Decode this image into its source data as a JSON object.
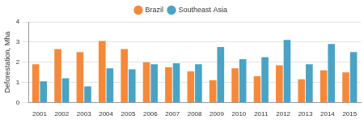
{
  "chart_data": {
    "type": "bar",
    "y_label": "Deforestation, Mha",
    "categories": [
      "2001",
      "2002",
      "2003",
      "2004",
      "2005",
      "2006",
      "2007",
      "2008",
      "2009",
      "2010",
      "2011",
      "2012",
      "2013",
      "2014",
      "2015"
    ],
    "series": [
      {
        "name": "Brazil",
        "color": "#f5893b",
        "values": [
          1.9,
          2.65,
          2.5,
          3.05,
          2.65,
          2.0,
          1.75,
          1.55,
          1.1,
          1.7,
          1.3,
          1.85,
          1.15,
          1.6,
          1.5
        ]
      },
      {
        "name": "Southeast Asia",
        "color": "#4aa3c4",
        "values": [
          1.05,
          1.2,
          0.8,
          1.7,
          1.65,
          1.9,
          1.95,
          1.9,
          2.75,
          2.15,
          2.25,
          3.1,
          1.9,
          2.9,
          2.5
        ]
      }
    ],
    "ylim": [
      0,
      4
    ],
    "yticks": [
      0,
      1,
      2,
      3,
      4
    ],
    "grid": true,
    "legend": "top"
  }
}
